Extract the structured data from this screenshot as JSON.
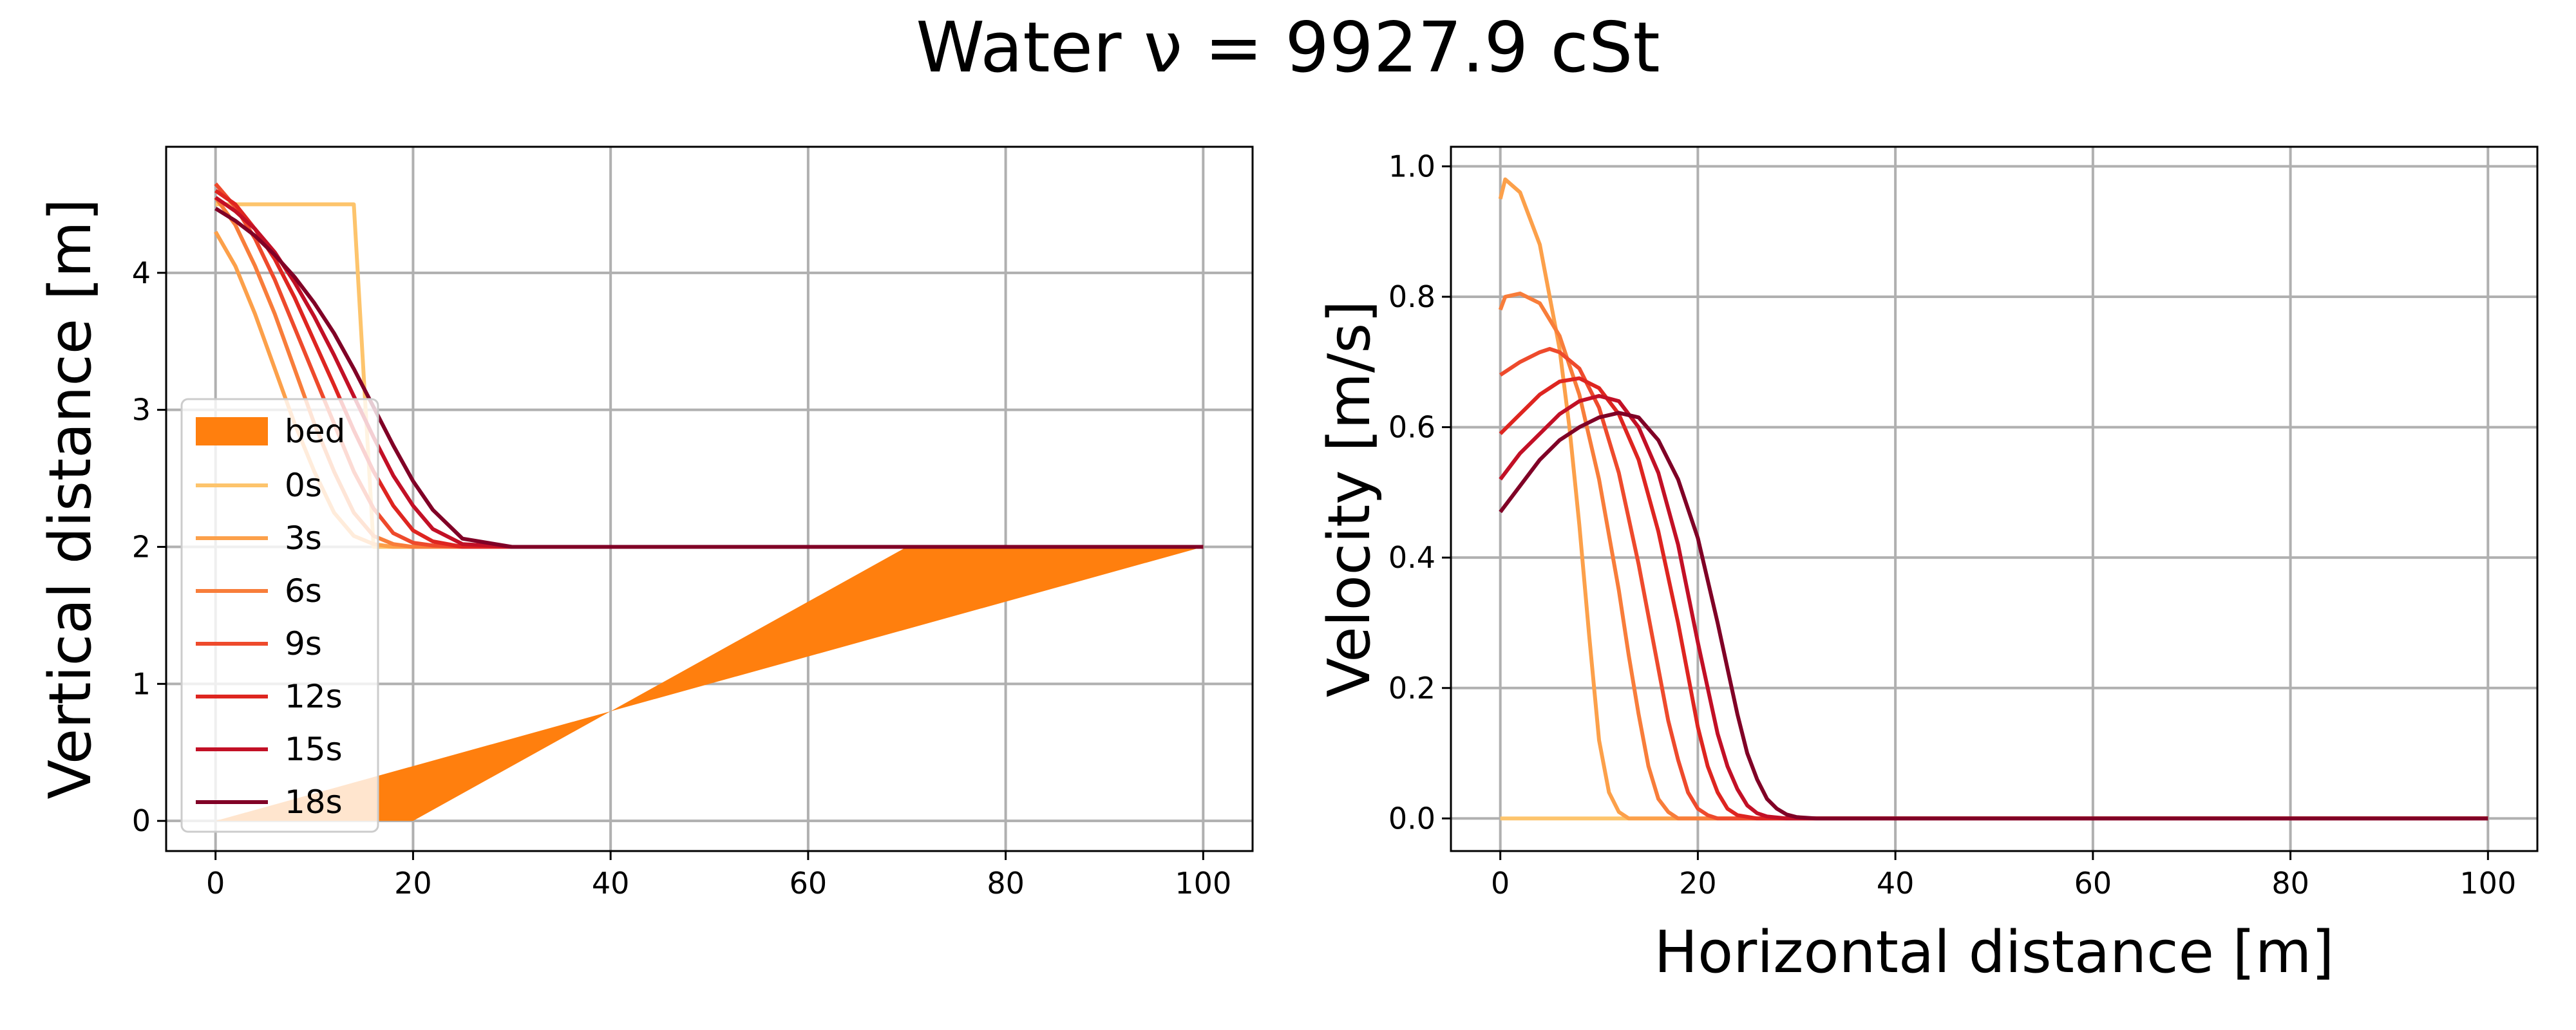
{
  "title": "Water ν = 9927.9 cSt",
  "chart_data": [
    {
      "type": "line",
      "ylabel": "Vertical distance [m]",
      "xlabel": "",
      "xlim": [
        -5,
        105
      ],
      "ylim": [
        -0.22,
        4.92
      ],
      "xticks": [
        0,
        20,
        40,
        60,
        80,
        100
      ],
      "yticks": [
        0,
        1,
        2,
        3,
        4
      ],
      "grid": true,
      "legend": "lower-left",
      "bed": {
        "name": "bed",
        "color": "#ff7f0e",
        "x": [
          0,
          20,
          70,
          100
        ],
        "y": [
          0,
          0,
          2,
          2
        ]
      },
      "series": [
        {
          "name": "0s",
          "color": "#fdc46c",
          "x": [
            0,
            2,
            4,
            6,
            8,
            10,
            12,
            14,
            16,
            18,
            20,
            22,
            25,
            30,
            40,
            60,
            80,
            100
          ],
          "y": [
            4.5,
            4.5,
            4.5,
            4.5,
            4.5,
            4.5,
            4.5,
            4.5,
            2.0,
            2.0,
            2.0,
            2.0,
            2.0,
            2.0,
            2.0,
            2.0,
            2.0,
            2.0
          ]
        },
        {
          "name": "3s",
          "color": "#fca04a",
          "x": [
            0,
            2,
            4,
            6,
            8,
            10,
            12,
            14,
            16,
            18,
            20,
            22,
            25,
            30,
            40,
            60,
            80,
            100
          ],
          "y": [
            4.3,
            4.05,
            3.7,
            3.3,
            2.9,
            2.55,
            2.25,
            2.08,
            2.02,
            2.0,
            2.0,
            2.0,
            2.0,
            2.0,
            2.0,
            2.0,
            2.0,
            2.0
          ]
        },
        {
          "name": "6s",
          "color": "#f87d3a",
          "x": [
            0,
            2,
            4,
            6,
            8,
            10,
            12,
            14,
            16,
            18,
            20,
            22,
            25,
            30,
            40,
            60,
            80,
            100
          ],
          "y": [
            4.55,
            4.35,
            4.05,
            3.7,
            3.3,
            2.9,
            2.55,
            2.25,
            2.08,
            2.02,
            2.0,
            2.0,
            2.0,
            2.0,
            2.0,
            2.0,
            2.0,
            2.0
          ]
        },
        {
          "name": "9s",
          "color": "#ee4a2c",
          "x": [
            0,
            2,
            4,
            6,
            8,
            10,
            12,
            14,
            16,
            18,
            20,
            22,
            25,
            30,
            40,
            60,
            80,
            100
          ],
          "y": [
            4.65,
            4.48,
            4.25,
            3.95,
            3.6,
            3.25,
            2.9,
            2.55,
            2.28,
            2.1,
            2.03,
            2.01,
            2.0,
            2.0,
            2.0,
            2.0,
            2.0,
            2.0
          ]
        },
        {
          "name": "12s",
          "color": "#de2520",
          "x": [
            0,
            2,
            4,
            6,
            8,
            10,
            12,
            14,
            16,
            18,
            20,
            22,
            25,
            30,
            40,
            60,
            80,
            100
          ],
          "y": [
            4.6,
            4.5,
            4.32,
            4.1,
            3.82,
            3.5,
            3.18,
            2.85,
            2.55,
            2.3,
            2.12,
            2.04,
            2.0,
            2.0,
            2.0,
            2.0,
            2.0,
            2.0
          ]
        },
        {
          "name": "15s",
          "color": "#c21026",
          "x": [
            0,
            2,
            4,
            6,
            8,
            10,
            12,
            14,
            16,
            18,
            20,
            22,
            25,
            30,
            40,
            60,
            80,
            100
          ],
          "y": [
            4.55,
            4.45,
            4.32,
            4.15,
            3.93,
            3.68,
            3.4,
            3.1,
            2.8,
            2.52,
            2.3,
            2.13,
            2.02,
            2.0,
            2.0,
            2.0,
            2.0,
            2.0
          ]
        },
        {
          "name": "18s",
          "color": "#800026",
          "x": [
            0,
            2,
            4,
            6,
            8,
            10,
            12,
            14,
            16,
            18,
            20,
            22,
            25,
            30,
            40,
            60,
            80,
            100
          ],
          "y": [
            4.47,
            4.38,
            4.27,
            4.13,
            3.97,
            3.78,
            3.56,
            3.3,
            3.02,
            2.74,
            2.48,
            2.27,
            2.06,
            2.0,
            2.0,
            2.0,
            2.0,
            2.0
          ]
        }
      ]
    },
    {
      "type": "line",
      "ylabel": "Velocity [m/s]",
      "xlabel": "Horizontal distance [m]",
      "xlim": [
        -5,
        105
      ],
      "ylim": [
        -0.05,
        1.03
      ],
      "xticks": [
        0,
        20,
        40,
        60,
        80,
        100
      ],
      "yticks": [
        0.0,
        0.2,
        0.4,
        0.6,
        0.8,
        1.0
      ],
      "ytick_labels": [
        "0.0",
        "0.2",
        "0.4",
        "0.6",
        "0.8",
        "1.0"
      ],
      "grid": true,
      "series": [
        {
          "name": "0s",
          "color": "#fdc46c",
          "x": [
            0,
            100
          ],
          "y": [
            0.0,
            0.0
          ]
        },
        {
          "name": "3s",
          "color": "#fca04a",
          "x": [
            0,
            0.5,
            2,
            4,
            6,
            7,
            8,
            9,
            10,
            11,
            12,
            13,
            15,
            20,
            40,
            60,
            80,
            100
          ],
          "y": [
            0.95,
            0.98,
            0.96,
            0.88,
            0.72,
            0.6,
            0.45,
            0.28,
            0.12,
            0.04,
            0.01,
            0.0,
            0.0,
            0.0,
            0.0,
            0.0,
            0.0,
            0.0
          ]
        },
        {
          "name": "6s",
          "color": "#f87d3a",
          "x": [
            0,
            0.5,
            2,
            4,
            6,
            8,
            10,
            12,
            13,
            14,
            15,
            16,
            17,
            18,
            20,
            25,
            40,
            60,
            80,
            100
          ],
          "y": [
            0.78,
            0.8,
            0.805,
            0.79,
            0.74,
            0.65,
            0.52,
            0.35,
            0.25,
            0.16,
            0.08,
            0.03,
            0.01,
            0.0,
            0.0,
            0.0,
            0.0,
            0.0,
            0.0,
            0.0
          ]
        },
        {
          "name": "9s",
          "color": "#ee4a2c",
          "x": [
            0,
            2,
            4,
            5,
            6,
            8,
            10,
            12,
            14,
            16,
            17,
            18,
            19,
            20,
            21,
            22,
            25,
            40,
            60,
            80,
            100
          ],
          "y": [
            0.68,
            0.7,
            0.715,
            0.72,
            0.715,
            0.69,
            0.63,
            0.53,
            0.39,
            0.23,
            0.15,
            0.09,
            0.04,
            0.015,
            0.005,
            0.0,
            0.0,
            0.0,
            0.0,
            0.0,
            0.0
          ]
        },
        {
          "name": "12s",
          "color": "#de2520",
          "x": [
            0,
            2,
            4,
            6,
            8,
            10,
            12,
            14,
            16,
            18,
            19,
            20,
            21,
            22,
            23,
            24,
            26,
            30,
            40,
            60,
            80,
            100
          ],
          "y": [
            0.59,
            0.62,
            0.65,
            0.67,
            0.675,
            0.66,
            0.62,
            0.55,
            0.44,
            0.3,
            0.22,
            0.14,
            0.08,
            0.04,
            0.015,
            0.005,
            0.0,
            0.0,
            0.0,
            0.0,
            0.0,
            0.0
          ]
        },
        {
          "name": "15s",
          "color": "#c21026",
          "x": [
            0,
            2,
            4,
            6,
            8,
            10,
            12,
            14,
            16,
            18,
            20,
            21,
            22,
            23,
            24,
            25,
            26,
            27,
            29,
            32,
            40,
            60,
            80,
            100
          ],
          "y": [
            0.52,
            0.56,
            0.59,
            0.62,
            0.64,
            0.648,
            0.64,
            0.6,
            0.53,
            0.42,
            0.27,
            0.2,
            0.13,
            0.08,
            0.045,
            0.02,
            0.008,
            0.003,
            0.0,
            0.0,
            0.0,
            0.0,
            0.0,
            0.0
          ]
        },
        {
          "name": "18s",
          "color": "#800026",
          "x": [
            0,
            2,
            4,
            6,
            8,
            10,
            12,
            14,
            16,
            18,
            20,
            22,
            23,
            24,
            25,
            26,
            27,
            28,
            29,
            30,
            32,
            35,
            40,
            60,
            80,
            100
          ],
          "y": [
            0.47,
            0.51,
            0.55,
            0.58,
            0.6,
            0.615,
            0.622,
            0.615,
            0.58,
            0.52,
            0.43,
            0.3,
            0.23,
            0.16,
            0.1,
            0.06,
            0.03,
            0.015,
            0.006,
            0.002,
            0.0,
            0.0,
            0.0,
            0.0,
            0.0,
            0.0
          ]
        }
      ]
    }
  ]
}
